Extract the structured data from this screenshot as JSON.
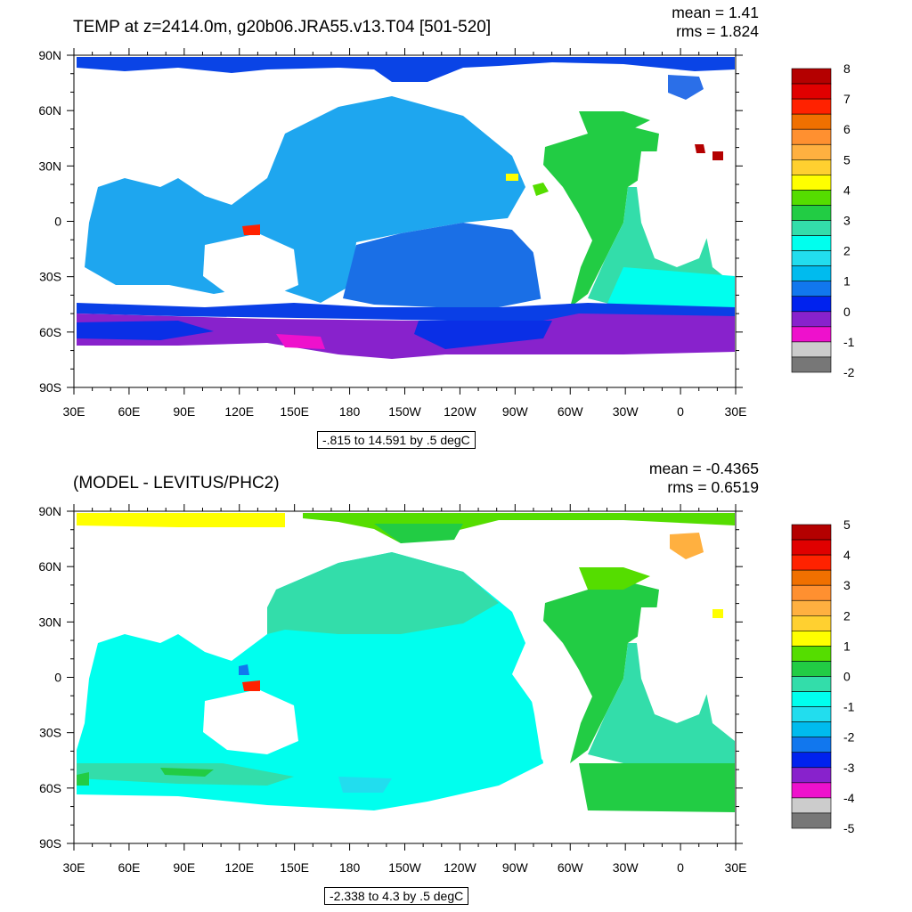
{
  "x_ticks": [
    "30E",
    "60E",
    "90E",
    "120E",
    "150E",
    "180",
    "150W",
    "120W",
    "90W",
    "60W",
    "30W",
    "0",
    "30E"
  ],
  "y_ticks": [
    "90N",
    "60N",
    "30N",
    "0",
    "30S",
    "60S",
    "90S"
  ],
  "panels": [
    {
      "title": "TEMP at z=2414.0m, g20b06.JRA55.v13.T04 [501-520]",
      "mean": "mean = 1.41",
      "rms": "rms = 1.824",
      "range_label": "-.815 to 14.591 by .5 degC",
      "colorbar_labels": [
        "8",
        "7",
        "6",
        "5",
        "4",
        "3",
        "2",
        "1",
        "0",
        "-1",
        "-2"
      ],
      "colorbar_colors": [
        "#b40000",
        "#e00000",
        "#ff2200",
        "#f07000",
        "#ff9030",
        "#ffb040",
        "#ffd030",
        "#ffff00",
        "#55dd00",
        "#22cc44",
        "#33ddaa",
        "#00ffee",
        "#22ddee",
        "#00bbee",
        "#1177ee",
        "#0022ee",
        "#8822cc",
        "#ee11cc",
        "#cccccc",
        "#777777"
      ]
    },
    {
      "title": "(MODEL - LEVITUS/PHC2)",
      "mean": "mean = -0.4365",
      "rms": "rms = 0.6519",
      "range_label": "-2.338 to 4.3 by .5 degC",
      "colorbar_labels": [
        "5",
        "4",
        "3",
        "2",
        "1",
        "0",
        "-1",
        "-2",
        "-3",
        "-4",
        "-5"
      ],
      "colorbar_colors": [
        "#b40000",
        "#e00000",
        "#ff2200",
        "#f07000",
        "#ff9030",
        "#ffb040",
        "#ffd030",
        "#ffff00",
        "#55dd00",
        "#22cc44",
        "#33ddaa",
        "#00ffee",
        "#22ddee",
        "#00bbee",
        "#1177ee",
        "#0022ee",
        "#8822cc",
        "#ee11cc",
        "#cccccc",
        "#777777"
      ]
    }
  ]
}
